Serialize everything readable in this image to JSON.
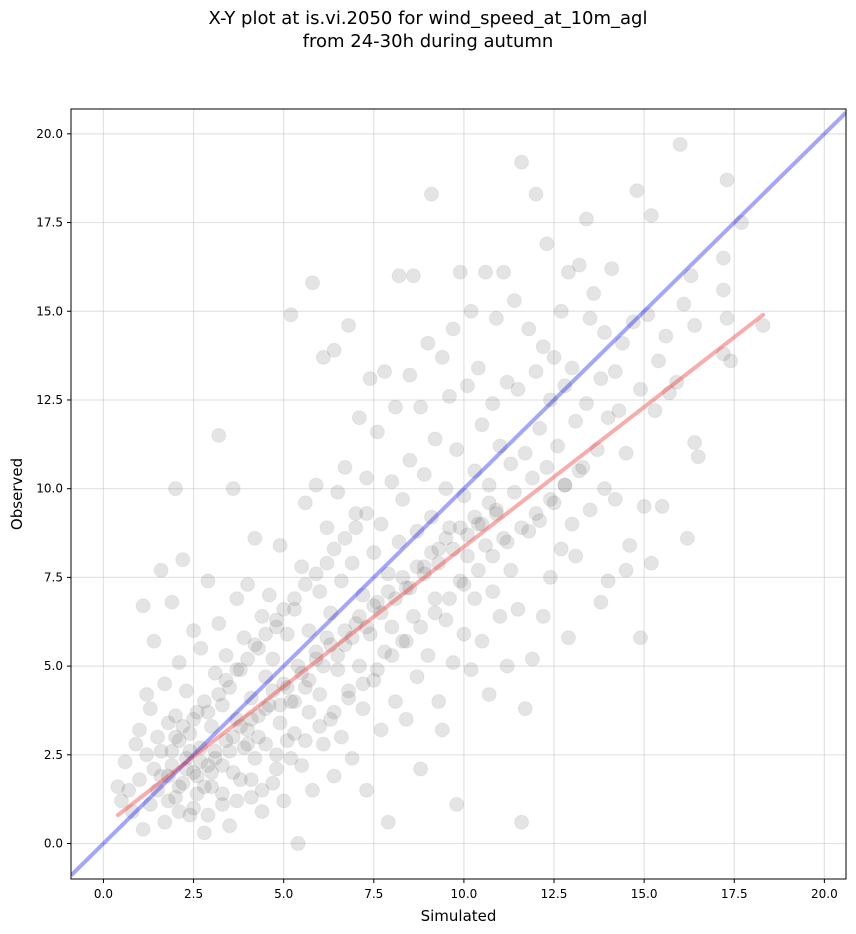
{
  "chart_data": {
    "type": "scatter",
    "title_line1": "X-Y plot at is.vi.2050 for wind_speed_at_10m_agl",
    "title_line2": "from 24-30h during autumn",
    "xlabel": "Simulated",
    "ylabel": "Observed",
    "xlim": [
      -0.9,
      20.6
    ],
    "ylim": [
      -1.0,
      20.7
    ],
    "x_ticks": [
      0.0,
      2.5,
      5.0,
      7.5,
      10.0,
      12.5,
      15.0,
      17.5,
      20.0
    ],
    "x_tick_labels": [
      "0.0",
      "2.5",
      "5.0",
      "7.5",
      "10.0",
      "12.5",
      "15.0",
      "17.5",
      "20.0"
    ],
    "y_ticks": [
      0.0,
      2.5,
      5.0,
      7.5,
      10.0,
      12.5,
      15.0,
      17.5,
      20.0
    ],
    "y_tick_labels": [
      "0.0",
      "2.5",
      "5.0",
      "7.5",
      "10.0",
      "12.5",
      "15.0",
      "17.5",
      "20.0"
    ],
    "grid": true,
    "point_color": "#555555",
    "one_to_one_line": {
      "color": "#0000ee",
      "x": [
        -0.9,
        20.6
      ],
      "y": [
        -0.9,
        20.6
      ]
    },
    "regression_line": {
      "color": "#ee3333",
      "x": [
        0.4,
        18.3
      ],
      "y": [
        0.8,
        14.9
      ]
    },
    "points": [
      [
        0.4,
        1.6
      ],
      [
        0.5,
        1.2
      ],
      [
        0.6,
        2.3
      ],
      [
        0.7,
        1.5
      ],
      [
        0.8,
        0.9
      ],
      [
        0.9,
        2.8
      ],
      [
        1.0,
        3.2
      ],
      [
        1.0,
        1.8
      ],
      [
        1.1,
        6.7
      ],
      [
        1.1,
        0.4
      ],
      [
        1.2,
        2.5
      ],
      [
        1.2,
        4.2
      ],
      [
        1.3,
        1.1
      ],
      [
        1.3,
        3.8
      ],
      [
        1.4,
        2.1
      ],
      [
        1.4,
        5.7
      ],
      [
        1.5,
        1.5
      ],
      [
        1.5,
        3.0
      ],
      [
        1.6,
        7.7
      ],
      [
        1.6,
        2.6
      ],
      [
        1.7,
        0.6
      ],
      [
        1.7,
        4.5
      ],
      [
        1.8,
        1.9
      ],
      [
        1.8,
        3.4
      ],
      [
        1.9,
        6.8
      ],
      [
        1.9,
        2.2
      ],
      [
        2.0,
        1.3
      ],
      [
        2.0,
        3.6
      ],
      [
        2.0,
        10.0
      ],
      [
        2.1,
        2.9
      ],
      [
        2.1,
        5.1
      ],
      [
        2.2,
        1.7
      ],
      [
        2.2,
        8.0
      ],
      [
        2.3,
        2.4
      ],
      [
        2.3,
        4.3
      ],
      [
        2.4,
        0.8
      ],
      [
        2.4,
        3.1
      ],
      [
        2.5,
        2.0
      ],
      [
        2.5,
        6.0
      ],
      [
        2.6,
        1.4
      ],
      [
        2.6,
        3.7
      ],
      [
        2.7,
        2.7
      ],
      [
        2.7,
        5.5
      ],
      [
        2.8,
        0.3
      ],
      [
        2.8,
        4.0
      ],
      [
        2.9,
        2.2
      ],
      [
        2.9,
        7.4
      ],
      [
        3.0,
        3.3
      ],
      [
        3.0,
        1.6
      ],
      [
        3.1,
        4.8
      ],
      [
        3.1,
        2.6
      ],
      [
        3.2,
        11.5
      ],
      [
        3.2,
        6.2
      ],
      [
        3.3,
        1.1
      ],
      [
        3.3,
        3.9
      ],
      [
        3.4,
        2.9
      ],
      [
        3.4,
        5.3
      ],
      [
        3.5,
        0.5
      ],
      [
        3.5,
        4.4
      ],
      [
        3.6,
        2.0
      ],
      [
        3.6,
        10.0
      ],
      [
        3.7,
        3.5
      ],
      [
        3.7,
        6.9
      ],
      [
        3.8,
        1.8
      ],
      [
        3.8,
        4.9
      ],
      [
        3.9,
        2.7
      ],
      [
        3.9,
        5.8
      ],
      [
        4.0,
        3.2
      ],
      [
        4.0,
        7.3
      ],
      [
        4.1,
        1.3
      ],
      [
        4.1,
        4.1
      ],
      [
        4.2,
        8.6
      ],
      [
        4.2,
        2.4
      ],
      [
        4.3,
        5.5
      ],
      [
        4.3,
        3.6
      ],
      [
        4.4,
        0.9
      ],
      [
        4.4,
        6.4
      ],
      [
        4.5,
        2.8
      ],
      [
        4.5,
        4.7
      ],
      [
        4.6,
        3.9
      ],
      [
        4.6,
        7.0
      ],
      [
        4.7,
        1.7
      ],
      [
        4.7,
        5.2
      ],
      [
        4.8,
        2.5
      ],
      [
        4.8,
        6.1
      ],
      [
        4.9,
        3.4
      ],
      [
        4.9,
        8.4
      ],
      [
        5.0,
        4.5
      ],
      [
        5.0,
        1.2
      ],
      [
        5.1,
        5.9
      ],
      [
        5.1,
        2.9
      ],
      [
        5.2,
        14.9
      ],
      [
        5.2,
        4.0
      ],
      [
        5.3,
        6.6
      ],
      [
        5.3,
        3.1
      ],
      [
        5.4,
        0.0
      ],
      [
        5.4,
        5.0
      ],
      [
        5.5,
        7.8
      ],
      [
        5.5,
        2.2
      ],
      [
        5.6,
        4.4
      ],
      [
        5.6,
        9.6
      ],
      [
        5.7,
        3.7
      ],
      [
        5.7,
        6.0
      ],
      [
        5.8,
        15.8
      ],
      [
        5.8,
        1.5
      ],
      [
        5.9,
        5.4
      ],
      [
        5.9,
        10.1
      ],
      [
        6.0,
        4.2
      ],
      [
        6.0,
        7.1
      ],
      [
        6.1,
        2.8
      ],
      [
        6.1,
        13.7
      ],
      [
        6.2,
        5.8
      ],
      [
        6.2,
        8.9
      ],
      [
        6.3,
        3.5
      ],
      [
        6.3,
        6.5
      ],
      [
        6.4,
        13.9
      ],
      [
        6.4,
        1.9
      ],
      [
        6.5,
        4.9
      ],
      [
        6.5,
        9.9
      ],
      [
        6.6,
        7.4
      ],
      [
        6.6,
        3.0
      ],
      [
        6.7,
        5.6
      ],
      [
        6.7,
        10.6
      ],
      [
        6.8,
        14.6
      ],
      [
        6.8,
        4.3
      ],
      [
        6.9,
        7.9
      ],
      [
        6.9,
        2.4
      ],
      [
        7.0,
        6.2
      ],
      [
        7.0,
        9.3
      ],
      [
        7.1,
        5.0
      ],
      [
        7.1,
        12.0
      ],
      [
        7.2,
        3.8
      ],
      [
        7.2,
        7.0
      ],
      [
        7.3,
        10.3
      ],
      [
        7.3,
        1.5
      ],
      [
        7.4,
        5.9
      ],
      [
        7.4,
        13.1
      ],
      [
        7.5,
        8.2
      ],
      [
        7.5,
        4.6
      ],
      [
        7.6,
        6.8
      ],
      [
        7.6,
        11.6
      ],
      [
        7.7,
        3.2
      ],
      [
        7.7,
        9.0
      ],
      [
        7.8,
        13.3
      ],
      [
        7.8,
        5.4
      ],
      [
        7.9,
        7.6
      ],
      [
        7.9,
        0.6
      ],
      [
        8.0,
        10.2
      ],
      [
        8.0,
        6.1
      ],
      [
        8.1,
        4.0
      ],
      [
        8.1,
        12.3
      ],
      [
        8.2,
        8.5
      ],
      [
        8.2,
        16.0
      ],
      [
        8.3,
        5.7
      ],
      [
        8.3,
        9.7
      ],
      [
        8.4,
        3.5
      ],
      [
        8.4,
        7.2
      ],
      [
        8.5,
        13.2
      ],
      [
        8.5,
        10.8
      ],
      [
        8.6,
        6.4
      ],
      [
        8.6,
        16.0
      ],
      [
        8.7,
        4.7
      ],
      [
        8.7,
        8.8
      ],
      [
        8.8,
        12.3
      ],
      [
        8.8,
        2.1
      ],
      [
        8.9,
        7.8
      ],
      [
        8.9,
        10.4
      ],
      [
        9.0,
        5.3
      ],
      [
        9.0,
        14.1
      ],
      [
        9.1,
        9.2
      ],
      [
        9.1,
        18.3
      ],
      [
        9.2,
        6.9
      ],
      [
        9.2,
        11.4
      ],
      [
        9.3,
        4.0
      ],
      [
        9.3,
        8.3
      ],
      [
        9.4,
        13.7
      ],
      [
        9.4,
        3.2
      ],
      [
        9.5,
        10.0
      ],
      [
        9.5,
        6.3
      ],
      [
        9.6,
        12.6
      ],
      [
        9.6,
        8.9
      ],
      [
        9.7,
        5.1
      ],
      [
        9.7,
        14.5
      ],
      [
        9.8,
        11.1
      ],
      [
        9.8,
        1.1
      ],
      [
        9.9,
        7.4
      ],
      [
        9.9,
        16.1
      ],
      [
        10.0,
        9.8
      ],
      [
        10.0,
        5.9
      ],
      [
        10.1,
        12.9
      ],
      [
        10.1,
        8.1
      ],
      [
        10.2,
        4.9
      ],
      [
        10.2,
        15.0
      ],
      [
        10.3,
        10.5
      ],
      [
        10.3,
        6.9
      ],
      [
        10.4,
        13.4
      ],
      [
        10.4,
        9.0
      ],
      [
        10.5,
        5.7
      ],
      [
        10.5,
        11.8
      ],
      [
        10.6,
        8.4
      ],
      [
        10.6,
        16.1
      ],
      [
        10.7,
        4.2
      ],
      [
        10.7,
        10.1
      ],
      [
        10.8,
        12.4
      ],
      [
        10.8,
        7.1
      ],
      [
        10.9,
        14.8
      ],
      [
        10.9,
        9.4
      ],
      [
        11.0,
        6.4
      ],
      [
        11.0,
        11.2
      ],
      [
        11.1,
        16.1
      ],
      [
        11.1,
        8.6
      ],
      [
        11.2,
        5.0
      ],
      [
        11.2,
        13.0
      ],
      [
        11.3,
        10.7
      ],
      [
        11.3,
        7.7
      ],
      [
        11.4,
        15.3
      ],
      [
        11.4,
        9.9
      ],
      [
        11.5,
        6.6
      ],
      [
        11.5,
        12.8
      ],
      [
        11.6,
        0.6
      ],
      [
        11.6,
        19.2
      ],
      [
        11.7,
        11.0
      ],
      [
        11.7,
        3.8
      ],
      [
        11.8,
        14.5
      ],
      [
        11.8,
        8.8
      ],
      [
        11.9,
        10.3
      ],
      [
        11.9,
        5.2
      ],
      [
        12.0,
        13.3
      ],
      [
        12.0,
        18.3
      ],
      [
        12.1,
        9.1
      ],
      [
        12.1,
        11.7
      ],
      [
        12.2,
        6.4
      ],
      [
        12.2,
        14.0
      ],
      [
        12.3,
        10.6
      ],
      [
        12.3,
        16.9
      ],
      [
        12.4,
        7.5
      ],
      [
        12.4,
        12.5
      ],
      [
        12.5,
        9.6
      ],
      [
        12.5,
        13.7
      ],
      [
        12.6,
        11.2
      ],
      [
        12.7,
        8.3
      ],
      [
        12.7,
        15.0
      ],
      [
        12.8,
        10.1
      ],
      [
        12.8,
        12.9
      ],
      [
        12.9,
        5.8
      ],
      [
        12.9,
        16.1
      ],
      [
        13.0,
        9.0
      ],
      [
        13.0,
        13.4
      ],
      [
        13.1,
        11.9
      ],
      [
        13.1,
        8.1
      ],
      [
        13.2,
        16.3
      ],
      [
        13.3,
        10.6
      ],
      [
        13.4,
        17.6
      ],
      [
        13.4,
        12.4
      ],
      [
        13.5,
        9.4
      ],
      [
        13.5,
        14.8
      ],
      [
        13.6,
        15.5
      ],
      [
        13.7,
        11.1
      ],
      [
        13.8,
        6.8
      ],
      [
        13.8,
        13.1
      ],
      [
        13.9,
        10.0
      ],
      [
        13.9,
        14.4
      ],
      [
        14.0,
        12.0
      ],
      [
        14.0,
        7.4
      ],
      [
        14.1,
        16.2
      ],
      [
        14.2,
        9.7
      ],
      [
        14.2,
        13.3
      ],
      [
        14.3,
        12.2
      ],
      [
        14.4,
        14.1
      ],
      [
        14.5,
        7.7
      ],
      [
        14.5,
        11.0
      ],
      [
        14.6,
        8.4
      ],
      [
        14.7,
        14.7
      ],
      [
        14.8,
        18.4
      ],
      [
        14.9,
        12.8
      ],
      [
        14.9,
        5.8
      ],
      [
        15.0,
        9.5
      ],
      [
        15.1,
        14.9
      ],
      [
        15.2,
        17.7
      ],
      [
        15.2,
        7.9
      ],
      [
        15.3,
        12.2
      ],
      [
        15.4,
        13.6
      ],
      [
        15.5,
        9.5
      ],
      [
        15.6,
        14.3
      ],
      [
        15.7,
        12.7
      ],
      [
        15.9,
        13.0
      ],
      [
        16.0,
        19.7
      ],
      [
        16.1,
        15.2
      ],
      [
        16.2,
        8.6
      ],
      [
        16.3,
        16.0
      ],
      [
        16.4,
        11.3
      ],
      [
        16.5,
        10.9
      ],
      [
        16.4,
        14.6
      ],
      [
        17.2,
        13.8
      ],
      [
        17.2,
        16.5
      ],
      [
        17.2,
        15.6
      ],
      [
        17.3,
        18.7
      ],
      [
        17.3,
        14.8
      ],
      [
        17.4,
        13.6
      ],
      [
        17.7,
        17.5
      ],
      [
        18.3,
        14.6
      ],
      [
        1.6,
        1.9
      ],
      [
        1.9,
        2.6
      ],
      [
        2.1,
        1.6
      ],
      [
        2.3,
        2.1
      ],
      [
        2.4,
        2.6
      ],
      [
        2.6,
        1.9
      ],
      [
        2.7,
        2.3
      ],
      [
        2.8,
        1.6
      ],
      [
        3.0,
        2.0
      ],
      [
        3.1,
        2.4
      ],
      [
        3.3,
        2.2
      ],
      [
        3.5,
        2.6
      ],
      [
        3.6,
        3.0
      ],
      [
        3.8,
        3.3
      ],
      [
        4.0,
        2.8
      ],
      [
        4.1,
        3.5
      ],
      [
        4.3,
        3.0
      ],
      [
        4.5,
        3.8
      ],
      [
        4.7,
        4.3
      ],
      [
        4.9,
        3.9
      ],
      [
        5.1,
        4.4
      ],
      [
        5.3,
        4.0
      ],
      [
        5.5,
        4.8
      ],
      [
        5.7,
        4.6
      ],
      [
        5.9,
        5.2
      ],
      [
        6.1,
        5.0
      ],
      [
        6.3,
        5.6
      ],
      [
        6.5,
        5.3
      ],
      [
        6.7,
        6.0
      ],
      [
        6.9,
        5.8
      ],
      [
        7.1,
        6.4
      ],
      [
        7.3,
        6.1
      ],
      [
        7.5,
        6.7
      ],
      [
        7.7,
        6.5
      ],
      [
        7.9,
        7.1
      ],
      [
        8.1,
        6.9
      ],
      [
        8.3,
        7.5
      ],
      [
        8.5,
        7.2
      ],
      [
        8.7,
        7.8
      ],
      [
        8.9,
        7.6
      ],
      [
        9.1,
        8.2
      ],
      [
        9.3,
        7.9
      ],
      [
        9.5,
        8.6
      ],
      [
        9.7,
        8.3
      ],
      [
        9.9,
        8.9
      ],
      [
        10.1,
        8.7
      ],
      [
        10.3,
        9.2
      ],
      [
        10.5,
        9.0
      ],
      [
        10.7,
        9.6
      ],
      [
        10.9,
        9.3
      ],
      [
        2.0,
        3.0
      ],
      [
        2.2,
        3.3
      ],
      [
        2.5,
        3.5
      ],
      [
        2.9,
        3.7
      ],
      [
        3.2,
        4.2
      ],
      [
        3.4,
        4.6
      ],
      [
        3.7,
        4.9
      ],
      [
        4.0,
        5.2
      ],
      [
        4.2,
        5.6
      ],
      [
        4.5,
        5.9
      ],
      [
        4.8,
        6.3
      ],
      [
        5.0,
        6.6
      ],
      [
        5.3,
        6.9
      ],
      [
        5.6,
        7.3
      ],
      [
        5.9,
        7.6
      ],
      [
        6.2,
        7.9
      ],
      [
        6.4,
        8.3
      ],
      [
        6.7,
        8.6
      ],
      [
        7.0,
        8.9
      ],
      [
        7.3,
        9.3
      ],
      [
        1.8,
        1.2
      ],
      [
        2.1,
        0.9
      ],
      [
        2.5,
        1.0
      ],
      [
        2.9,
        0.8
      ],
      [
        3.3,
        1.4
      ],
      [
        3.7,
        1.2
      ],
      [
        4.1,
        1.8
      ],
      [
        4.4,
        1.5
      ],
      [
        4.8,
        2.1
      ],
      [
        5.2,
        2.4
      ],
      [
        5.6,
        2.9
      ],
      [
        6.0,
        3.3
      ],
      [
        6.4,
        3.7
      ],
      [
        6.8,
        4.1
      ],
      [
        7.2,
        4.5
      ],
      [
        7.6,
        4.9
      ],
      [
        8.0,
        5.3
      ],
      [
        8.4,
        5.7
      ],
      [
        8.8,
        6.1
      ],
      [
        9.2,
        6.5
      ],
      [
        9.6,
        6.9
      ],
      [
        10.0,
        7.3
      ],
      [
        10.4,
        7.7
      ],
      [
        10.8,
        8.1
      ],
      [
        11.2,
        8.5
      ],
      [
        11.6,
        8.9
      ],
      [
        12.0,
        9.3
      ],
      [
        12.4,
        9.7
      ],
      [
        12.8,
        10.1
      ],
      [
        13.2,
        10.5
      ]
    ]
  }
}
